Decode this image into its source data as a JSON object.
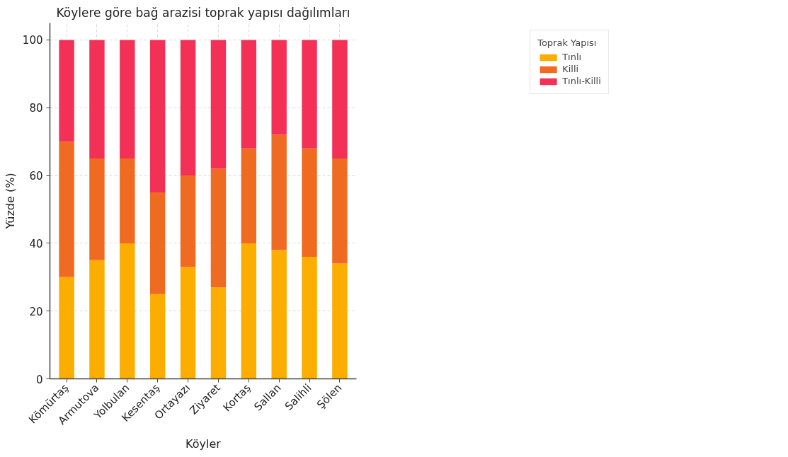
{
  "chart_data": {
    "type": "bar",
    "title": "Köylere göre bağ arazisi toprak yapısı dağılımları",
    "xlabel": "Köyler",
    "ylabel": "Yüzde (%)",
    "legend_title": "Toprak Yapısı",
    "categories": [
      "Kömürtaş",
      "Armutova",
      "Yolbulan",
      "Kesentaş",
      "Ortayazı",
      "Ziyaret",
      "Kortaş",
      "Sallan",
      "Salihli",
      "Şölen"
    ],
    "series": [
      {
        "name": "Tınlı",
        "color": "#fbad00",
        "values": [
          30,
          35,
          40,
          25,
          33,
          27,
          40,
          38,
          36,
          34
        ]
      },
      {
        "name": "Killi",
        "color": "#f06b22",
        "values": [
          40,
          30,
          25,
          30,
          27,
          35,
          28,
          34,
          32,
          31
        ]
      },
      {
        "name": "Tınlı-Killi",
        "color": "#f33157",
        "values": [
          30,
          35,
          35,
          45,
          40,
          38,
          32,
          28,
          32,
          35
        ]
      }
    ],
    "stacked": true,
    "ylim": [
      0,
      105
    ],
    "yticks": [
      0,
      20,
      40,
      60,
      80,
      100
    ],
    "grid": true,
    "legend": "top right"
  }
}
